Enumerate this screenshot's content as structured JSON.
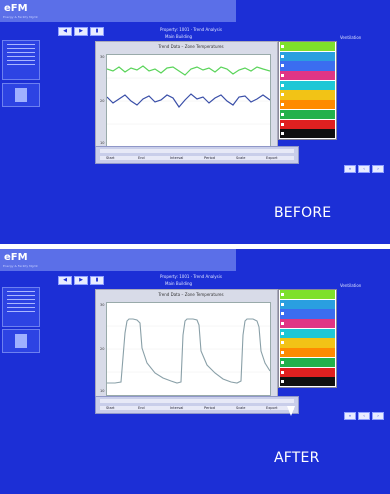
{
  "app": {
    "logo": "eFM",
    "logo_sub": "Energy & Facility Mgmt"
  },
  "panels": [
    {
      "caption": "BEFORE",
      "top_info": [
        "Property: 1001 · Trend Analysis",
        "Main Building",
        "Ventilation"
      ],
      "chart_title": "Trend Data – Zone Temperatures",
      "toolbar_buttons": [
        "◀",
        "▶",
        "▮"
      ],
      "legend_colors": [
        "#7ee02b",
        "#2a9fe0",
        "#3b6df0",
        "#e03585",
        "#1ec7d6",
        "#f2c316",
        "#ff8a00",
        "#22b14c",
        "#e02020",
        "#101010"
      ],
      "bottom_labels": [
        "Start",
        "End",
        "Interval",
        "Period",
        "Scale",
        "Export"
      ],
      "x_ticks": [
        "00:00",
        "06:00",
        "12:00",
        "18:00",
        "24:00"
      ]
    },
    {
      "caption": "AFTER",
      "top_info": [
        "Property: 1001 · Trend Analysis",
        "Main Building",
        "Ventilation"
      ],
      "chart_title": "Trend Data – Zone Temperatures",
      "toolbar_buttons": [
        "◀",
        "▶",
        "▮"
      ],
      "legend_colors": [
        "#7ee02b",
        "#2a9fe0",
        "#3b6df0",
        "#e03585",
        "#1ec7d6",
        "#f2c316",
        "#ff8a00",
        "#22b14c",
        "#e02020",
        "#101010"
      ],
      "bottom_labels": [
        "Start",
        "End",
        "Interval",
        "Period",
        "Scale",
        "Export"
      ],
      "x_ticks": [
        "00:00",
        "06:00",
        "12:00",
        "18:00",
        "24:00"
      ]
    }
  ],
  "colors": {
    "background": "#1c2fd6",
    "topbar": "#5b6fe8",
    "green_series": "#5ad45a",
    "blue_series": "#3a4fa8",
    "peak_series": "#8aa0a8"
  }
}
